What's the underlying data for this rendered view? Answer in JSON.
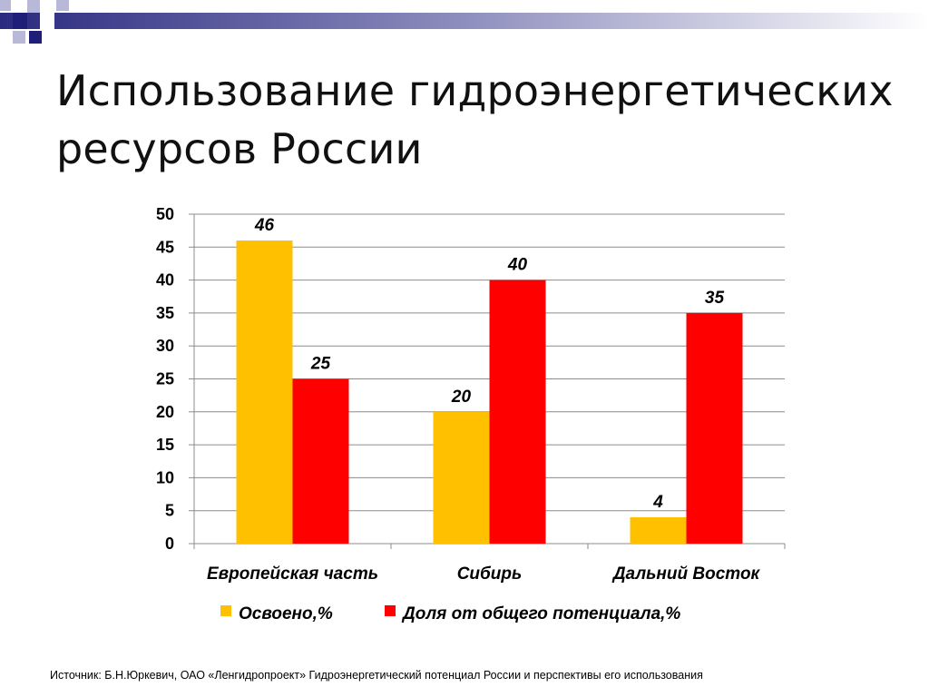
{
  "slide": {
    "title_line1": "Использование гидроэнергетических",
    "title_line2": "ресурсов России",
    "source": "Источник: Б.Н.Юркевич, ОАО «Ленгидропроект» Гидроэнергетический потенциал России и перспективы его использования"
  },
  "colors": {
    "series1": "#FFC000",
    "series2": "#FF0000",
    "decoration_dark": "#1F1F7A",
    "decoration_light": "#B8B8D8"
  },
  "chart_data": {
    "type": "bar",
    "categories": [
      "Европейская часть",
      "Сибирь",
      "Дальний Восток"
    ],
    "series": [
      {
        "name": "Освоено,%",
        "values": [
          46,
          20,
          4
        ],
        "color": "#FFC000"
      },
      {
        "name": "Доля от общего потенциала,%",
        "values": [
          25,
          40,
          35
        ],
        "color": "#FF0000"
      }
    ],
    "ylim": [
      0,
      50
    ],
    "yticks": [
      0,
      5,
      10,
      15,
      20,
      25,
      30,
      35,
      40,
      45,
      50
    ],
    "grid": true,
    "data_labels": true,
    "legend": "bottom"
  }
}
